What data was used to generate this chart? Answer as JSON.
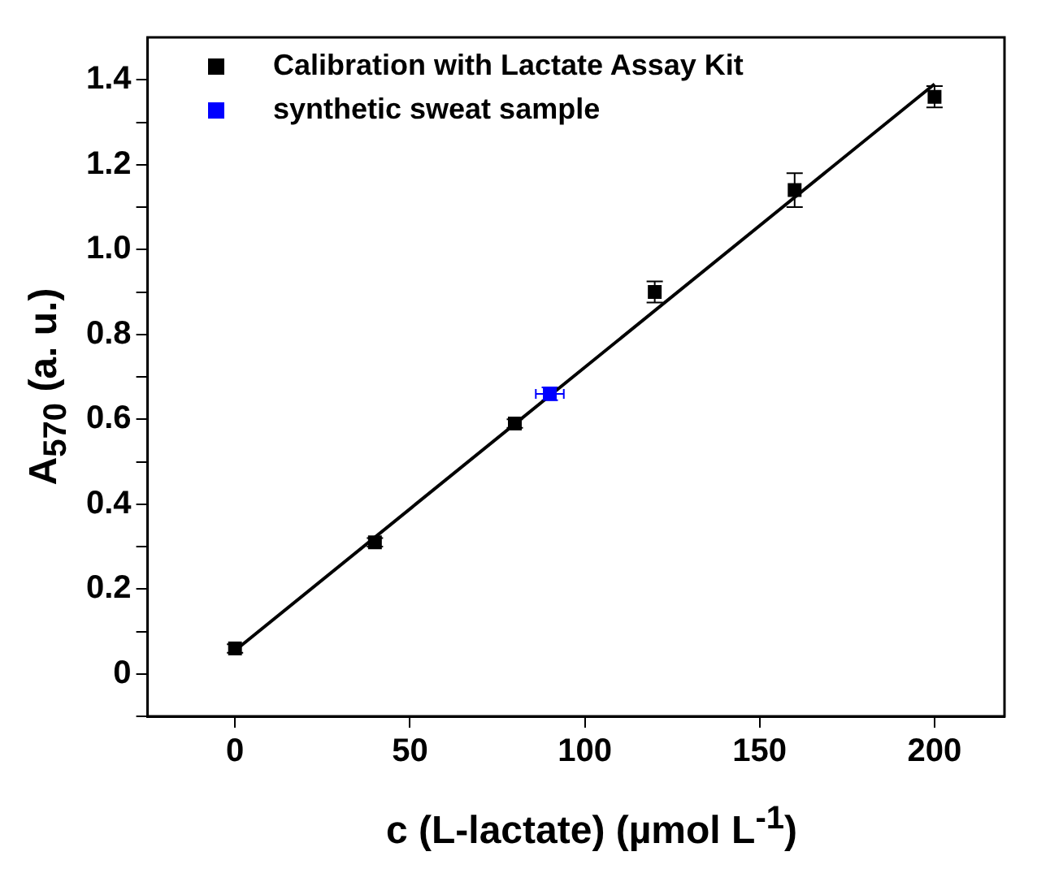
{
  "chart_data": {
    "type": "scatter",
    "xlabel": "c (L-lactate) (µmol L$^{-1}$)",
    "ylabel": "A$_{570}$ (a. u.)",
    "xlim": [
      -25,
      220
    ],
    "xticks": [
      0,
      50,
      100,
      150,
      200
    ],
    "ylim": [
      -0.1,
      1.5
    ],
    "yticks": [
      {
        "value": -0.1,
        "label": null
      },
      0,
      {
        "value": 0.1,
        "label": null
      },
      0.2,
      {
        "value": 0.3,
        "label": null
      },
      0.4,
      {
        "value": 0.5,
        "label": null
      },
      0.6,
      {
        "value": 0.7,
        "label": null
      },
      0.8,
      {
        "value": 0.9,
        "label": null
      },
      {
        "value": 1,
        "label": "1.0"
      },
      {
        "value": 1.1,
        "label": null
      },
      1.2,
      {
        "value": 1.3,
        "label": null
      },
      1.4
    ],
    "grid": false,
    "legend": "top left",
    "marker": "square",
    "series": [
      {
        "type": "line",
        "color": "#000000",
        "x": [
          0,
          200
        ],
        "values": [
          0.055,
          1.39
        ],
        "marker": "none",
        "line_style": "solid"
      },
      {
        "name": "Calibration with Lactate Assay Kit",
        "color": "#000000",
        "x": [
          0,
          40,
          80,
          120,
          160,
          200
        ],
        "values": [
          0.06,
          0.31,
          0.59,
          0.9,
          1.14,
          1.36
        ],
        "errors": [
          0.01,
          0.01,
          0.01,
          0.025,
          0.04,
          0.025
        ]
      },
      {
        "name": "synthetic sweat sample",
        "color": "#0000ff",
        "x": [
          90
        ],
        "values": [
          0.66
        ],
        "errors": [
          0.015
        ],
        "xerrors": [
          4
        ]
      }
    ]
  }
}
